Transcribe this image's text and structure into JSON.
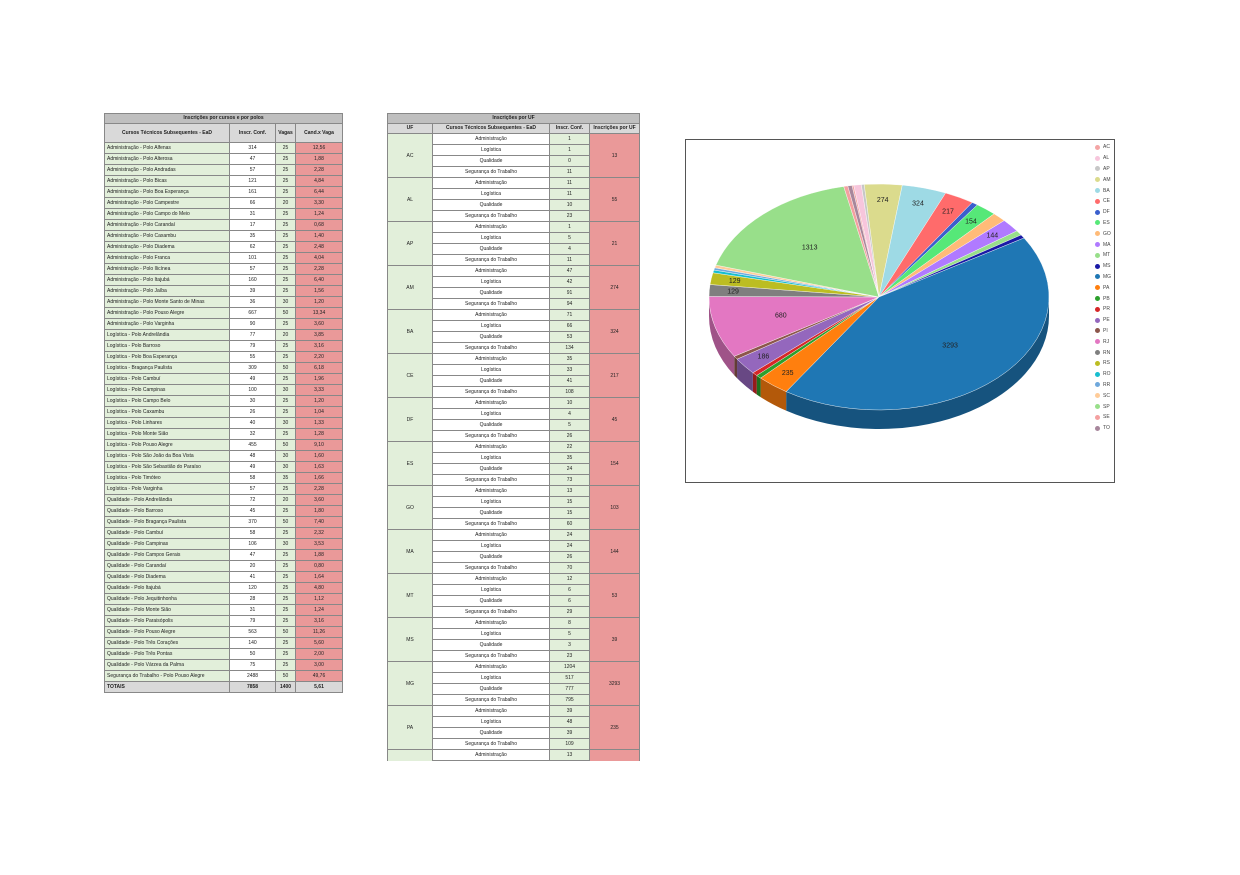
{
  "table_polos": {
    "title": "Inscrições por cursos e por polos",
    "headers": [
      "Cursos Técnicos Subsequentes - EaD",
      "Inscr. Conf.",
      "Vagas",
      "Cand.x Vaga"
    ],
    "rows": [
      [
        "Administração - Polo Alfenas",
        "314",
        "25",
        "12,56"
      ],
      [
        "Administração - Polo Alterosa",
        "47",
        "25",
        "1,88"
      ],
      [
        "Administração - Polo Andradas",
        "57",
        "25",
        "2,28"
      ],
      [
        "Administração - Polo Bicas",
        "121",
        "25",
        "4,84"
      ],
      [
        "Administração - Polo Boa Esperança",
        "161",
        "25",
        "6,44"
      ],
      [
        "Administração - Polo Campestre",
        "66",
        "20",
        "3,30"
      ],
      [
        "Administração - Polo Campo do Meio",
        "31",
        "25",
        "1,24"
      ],
      [
        "Administração - Polo Carandaí",
        "17",
        "25",
        "0,68"
      ],
      [
        "Administração - Polo Caxambu",
        "35",
        "25",
        "1,40"
      ],
      [
        "Administração - Polo Diadema",
        "62",
        "25",
        "2,48"
      ],
      [
        "Administração - Polo Franca",
        "101",
        "25",
        "4,04"
      ],
      [
        "Administração - Polo Ilicínea",
        "57",
        "25",
        "2,28"
      ],
      [
        "Administração - Polo Itajubá",
        "160",
        "25",
        "6,40"
      ],
      [
        "Administração - Polo Jaíba",
        "39",
        "25",
        "1,56"
      ],
      [
        "Administração - Polo Monte Santo de Minas",
        "36",
        "30",
        "1,20"
      ],
      [
        "Administração - Polo Pouso Alegre",
        "667",
        "50",
        "13,34"
      ],
      [
        "Administração - Polo Varginha",
        "90",
        "25",
        "3,60"
      ],
      [
        "Logística - Polo Andrelândia",
        "77",
        "20",
        "3,85"
      ],
      [
        "Logística - Polo Barroso",
        "79",
        "25",
        "3,16"
      ],
      [
        "Logística - Polo Boa Esperança",
        "55",
        "25",
        "2,20"
      ],
      [
        "Logística - Bragança Paulista",
        "309",
        "50",
        "6,18"
      ],
      [
        "Logística - Polo Cambuí",
        "49",
        "25",
        "1,96"
      ],
      [
        "Logística - Polo Campinas",
        "100",
        "30",
        "3,33"
      ],
      [
        "Logística - Polo Campo Belo",
        "30",
        "25",
        "1,20"
      ],
      [
        "Logística - Polo Caxambu",
        "26",
        "25",
        "1,04"
      ],
      [
        "Logística - Polo Linhares",
        "40",
        "30",
        "1,33"
      ],
      [
        "Logística - Polo Monte Sião",
        "32",
        "25",
        "1,28"
      ],
      [
        "Logística - Polo Pouso Alegre",
        "455",
        "50",
        "9,10"
      ],
      [
        "Logística - Polo São João da Boa Vista",
        "48",
        "30",
        "1,60"
      ],
      [
        "Logística - Polo São Sebastião do Paraíso",
        "49",
        "30",
        "1,63"
      ],
      [
        "Logística - Polo Timóteo",
        "58",
        "35",
        "1,66"
      ],
      [
        "Logística - Polo Varginha",
        "57",
        "25",
        "2,28"
      ],
      [
        "Qualidade - Polo Andrelândia",
        "72",
        "20",
        "3,60"
      ],
      [
        "Qualidade - Polo Barroso",
        "45",
        "25",
        "1,80"
      ],
      [
        "Qualidade - Polo Bragança Paulista",
        "370",
        "50",
        "7,40"
      ],
      [
        "Qualidade - Polo Cambuí",
        "58",
        "25",
        "2,32"
      ],
      [
        "Qualidade - Polo Campinas",
        "106",
        "30",
        "3,53"
      ],
      [
        "Qualidade - Polo Campos Gerais",
        "47",
        "25",
        "1,88"
      ],
      [
        "Qualidade - Polo Carandaí",
        "20",
        "25",
        "0,80"
      ],
      [
        "Qualidade - Polo Diadema",
        "41",
        "25",
        "1,64"
      ],
      [
        "Qualidade - Polo Itajubá",
        "120",
        "25",
        "4,80"
      ],
      [
        "Qualidade - Polo Jequitinhonha",
        "28",
        "25",
        "1,12"
      ],
      [
        "Qualidade - Polo Monte Sião",
        "31",
        "25",
        "1,24"
      ],
      [
        "Qualidade - Polo Paraisópolis",
        "79",
        "25",
        "3,16"
      ],
      [
        "Qualidade - Polo Pouso Alegre",
        "563",
        "50",
        "11,26"
      ],
      [
        "Qualidade - Polo Três Corações",
        "140",
        "25",
        "5,60"
      ],
      [
        "Qualidade - Polo Três Pontas",
        "50",
        "25",
        "2,00"
      ],
      [
        "Qualidade - Polo Várzea da Palma",
        "75",
        "25",
        "3,00"
      ],
      [
        "Segurança do Trabalho - Polo Pouso Alegre",
        "2488",
        "50",
        "49,76"
      ]
    ],
    "totals": [
      "TOTAIS",
      "7858",
      "1400",
      "5,61"
    ]
  },
  "table_uf": {
    "title": "Inscrições por UF",
    "headers": [
      "UF",
      "Cursos Técnicos Subsequentes - EaD",
      "Inscr. Conf.",
      "Inscrições por UF"
    ],
    "groups": [
      {
        "uf": "AC",
        "total": "13",
        "rows": [
          [
            "Administração",
            "1"
          ],
          [
            "Logística",
            "1"
          ],
          [
            "Qualidade",
            "0"
          ],
          [
            "Segurança do Trabalho",
            "11"
          ]
        ]
      },
      {
        "uf": "AL",
        "total": "55",
        "rows": [
          [
            "Administração",
            "11"
          ],
          [
            "Logística",
            "11"
          ],
          [
            "Qualidade",
            "10"
          ],
          [
            "Segurança do Trabalho",
            "23"
          ]
        ]
      },
      {
        "uf": "AP",
        "total": "21",
        "rows": [
          [
            "Administração",
            "1"
          ],
          [
            "Logística",
            "5"
          ],
          [
            "Qualidade",
            "4"
          ],
          [
            "Segurança do Trabalho",
            "11"
          ]
        ]
      },
      {
        "uf": "AM",
        "total": "274",
        "rows": [
          [
            "Administração",
            "47"
          ],
          [
            "Logística",
            "42"
          ],
          [
            "Qualidade",
            "91"
          ],
          [
            "Segurança do Trabalho",
            "94"
          ]
        ]
      },
      {
        "uf": "BA",
        "total": "324",
        "rows": [
          [
            "Administração",
            "71"
          ],
          [
            "Logística",
            "66"
          ],
          [
            "Qualidade",
            "53"
          ],
          [
            "Segurança do Trabalho",
            "134"
          ]
        ]
      },
      {
        "uf": "CE",
        "total": "217",
        "rows": [
          [
            "Administração",
            "35"
          ],
          [
            "Logística",
            "33"
          ],
          [
            "Qualidade",
            "41"
          ],
          [
            "Segurança do Trabalho",
            "108"
          ]
        ]
      },
      {
        "uf": "DF",
        "total": "45",
        "rows": [
          [
            "Administração",
            "10"
          ],
          [
            "Logística",
            "4"
          ],
          [
            "Qualidade",
            "5"
          ],
          [
            "Segurança do Trabalho",
            "26"
          ]
        ]
      },
      {
        "uf": "ES",
        "total": "154",
        "rows": [
          [
            "Administração",
            "22"
          ],
          [
            "Logística",
            "35"
          ],
          [
            "Qualidade",
            "24"
          ],
          [
            "Segurança do Trabalho",
            "73"
          ]
        ]
      },
      {
        "uf": "GO",
        "total": "103",
        "rows": [
          [
            "Administração",
            "13"
          ],
          [
            "Logística",
            "15"
          ],
          [
            "Qualidade",
            "15"
          ],
          [
            "Segurança do Trabalho",
            "60"
          ]
        ]
      },
      {
        "uf": "MA",
        "total": "144",
        "rows": [
          [
            "Administração",
            "24"
          ],
          [
            "Logística",
            "24"
          ],
          [
            "Qualidade",
            "26"
          ],
          [
            "Segurança do Trabalho",
            "70"
          ]
        ]
      },
      {
        "uf": "MT",
        "total": "53",
        "rows": [
          [
            "Administração",
            "12"
          ],
          [
            "Logística",
            "6"
          ],
          [
            "Qualidade",
            "6"
          ],
          [
            "Segurança do Trabalho",
            "29"
          ]
        ]
      },
      {
        "uf": "MS",
        "total": "39",
        "rows": [
          [
            "Administração",
            "8"
          ],
          [
            "Logística",
            "5"
          ],
          [
            "Qualidade",
            "3"
          ],
          [
            "Segurança do Trabalho",
            "23"
          ]
        ]
      },
      {
        "uf": "MG",
        "total": "3293",
        "rows": [
          [
            "Administração",
            "1204"
          ],
          [
            "Logística",
            "517"
          ],
          [
            "Qualidade",
            "777"
          ],
          [
            "Segurança do Trabalho",
            "795"
          ]
        ]
      },
      {
        "uf": "PA",
        "total": "235",
        "rows": [
          [
            "Administração",
            "39"
          ],
          [
            "Logística",
            "48"
          ],
          [
            "Qualidade",
            "39"
          ],
          [
            "Segurança do Trabalho",
            "109"
          ]
        ]
      },
      {
        "uf": "",
        "total": "",
        "rows": [
          [
            "Administração",
            "13"
          ]
        ]
      }
    ]
  },
  "chart_data": {
    "type": "pie",
    "style": "3d",
    "labels": [
      "AC",
      "AL",
      "AP",
      "AM",
      "BA",
      "CE",
      "DF",
      "ES",
      "GO",
      "MA",
      "MT",
      "MS",
      "MG",
      "PA",
      "PB",
      "PR",
      "PE",
      "PI",
      "RJ",
      "RN",
      "RS",
      "RO",
      "RR",
      "SC",
      "SP",
      "SE",
      "TO"
    ],
    "values": [
      13,
      55,
      21,
      274,
      324,
      217,
      45,
      154,
      103,
      144,
      53,
      39,
      3293,
      235,
      40,
      40,
      186,
      37,
      680,
      129,
      129,
      30,
      25,
      30,
      1313,
      30,
      30
    ],
    "data_labels": [
      null,
      null,
      null,
      "274",
      "324",
      "217",
      null,
      "154",
      null,
      "144",
      null,
      null,
      "3293",
      "235",
      null,
      null,
      "186",
      null,
      "680",
      "129",
      "129",
      null,
      null,
      null,
      "1313",
      null,
      null
    ],
    "colors": [
      "#f4a5a5",
      "#f7c6dc",
      "#c7c7c7",
      "#dbdb8d",
      "#9edae5",
      "#ff6b6b",
      "#3a5fcd",
      "#56e878",
      "#ffbb78",
      "#b07aff",
      "#98df8a",
      "#1a1aa6",
      "#1f77b4",
      "#ff7f0e",
      "#2ca02c",
      "#d62728",
      "#9467bd",
      "#8c564b",
      "#e377c2",
      "#7f7f7f",
      "#bcbd22",
      "#17becf",
      "#6fa8dc",
      "#ffcc99",
      "#98df8a",
      "#f4a0a0",
      "#a7869b"
    ],
    "legend": "right"
  }
}
